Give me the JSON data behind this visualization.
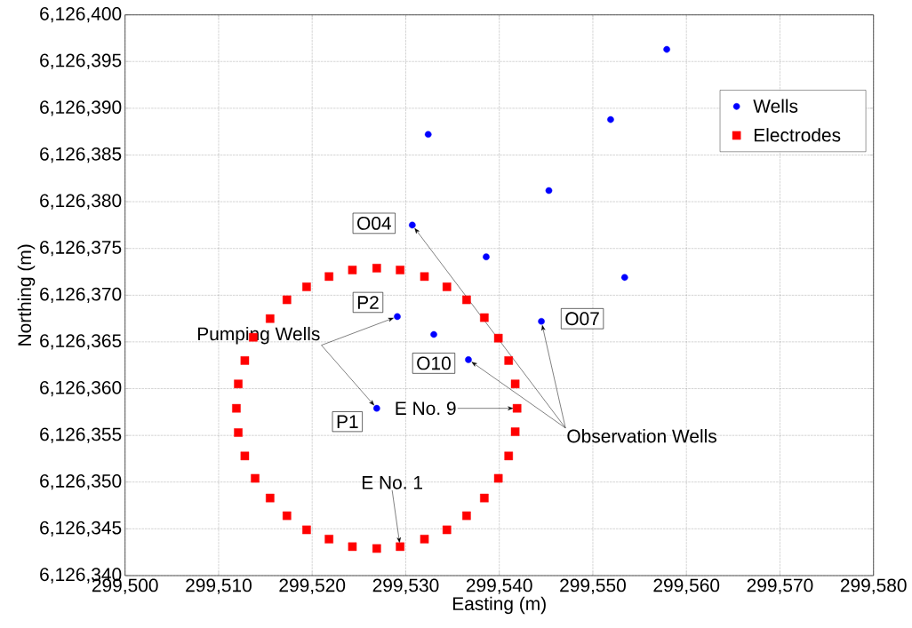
{
  "chart_data": {
    "type": "scatter",
    "xlabel": "Easting (m)",
    "ylabel": "Northing (m)",
    "xlim": [
      299500,
      299580
    ],
    "ylim": [
      6126340,
      6126400
    ],
    "xticks": [
      {
        "value": 299500,
        "label": "299,500"
      },
      {
        "value": 299510,
        "label": "299,510"
      },
      {
        "value": 299520,
        "label": "299,520"
      },
      {
        "value": 299530,
        "label": "299,530"
      },
      {
        "value": 299540,
        "label": "299,540"
      },
      {
        "value": 299550,
        "label": "299,550"
      },
      {
        "value": 299560,
        "label": "299,560"
      },
      {
        "value": 299570,
        "label": "299,570"
      },
      {
        "value": 299580,
        "label": "299,580"
      }
    ],
    "yticks": [
      {
        "value": 6126340,
        "label": "6,126,340"
      },
      {
        "value": 6126345,
        "label": "6,126,345"
      },
      {
        "value": 6126350,
        "label": "6,126,350"
      },
      {
        "value": 6126355,
        "label": "6,126,355"
      },
      {
        "value": 6126360,
        "label": "6,126,360"
      },
      {
        "value": 6126365,
        "label": "6,126,365"
      },
      {
        "value": 6126370,
        "label": "6,126,370"
      },
      {
        "value": 6126375,
        "label": "6,126,375"
      },
      {
        "value": 6126380,
        "label": "6,126,380"
      },
      {
        "value": 6126385,
        "label": "6,126,385"
      },
      {
        "value": 6126390,
        "label": "6,126,390"
      },
      {
        "value": 6126395,
        "label": "6,126,395"
      },
      {
        "value": 6126400,
        "label": "6,126,400"
      }
    ],
    "grid": true,
    "legend": "top right",
    "series": [
      {
        "name": "Wells",
        "color": "#0000ff",
        "marker": "circle",
        "x": [
          299557.9,
          299551.9,
          299532.4,
          299545.3,
          299530.7,
          299538.6,
          299553.4,
          299529.1,
          299544.5,
          299533.0,
          299536.7,
          299526.9
        ],
        "values": [
          6126396.3,
          6126388.8,
          6126387.2,
          6126381.2,
          6126377.5,
          6126374.1,
          6126371.9,
          6126367.7,
          6126367.2,
          6126365.8,
          6126363.1,
          6126357.9
        ]
      },
      {
        "name": "Electrodes",
        "color": "#ff0000",
        "marker": "square",
        "x": [
          299529.4,
          299532.0,
          299534.4,
          299536.5,
          299538.4,
          299539.9,
          299541.0,
          299541.7,
          299541.9,
          299541.7,
          299541.0,
          299539.9,
          299538.4,
          299536.5,
          299534.4,
          299532.0,
          299529.4,
          299526.9,
          299524.3,
          299521.8,
          299519.4,
          299517.3,
          299515.5,
          299513.7,
          299512.8,
          299512.1,
          299511.9,
          299512.1,
          299512.8,
          299513.9,
          299515.5,
          299517.3,
          299519.4,
          299521.8,
          299524.3,
          299526.9
        ],
        "values": [
          6126343.1,
          6126343.9,
          6126344.9,
          6126346.4,
          6126348.3,
          6126350.4,
          6126352.8,
          6126355.4,
          6126357.9,
          6126360.5,
          6126363.0,
          6126365.4,
          6126367.6,
          6126369.5,
          6126370.9,
          6126372.0,
          6126372.7,
          6126372.9,
          6126372.7,
          6126372.0,
          6126370.9,
          6126369.5,
          6126367.5,
          6126365.5,
          6126363.0,
          6126360.5,
          6126357.9,
          6126355.3,
          6126352.8,
          6126350.4,
          6126348.3,
          6126346.4,
          6126344.9,
          6126343.9,
          6126343.1,
          6126342.9
        ]
      }
    ],
    "annotations": [
      {
        "text": "P1",
        "x": 299526.9,
        "y": 6126357.9
      },
      {
        "text": "P2",
        "x": 299529.1,
        "y": 6126367.7
      },
      {
        "text": "O04",
        "x": 299530.7,
        "y": 6126377.5
      },
      {
        "text": "O07",
        "x": 299544.5,
        "y": 6126367.2
      },
      {
        "text": "O10",
        "x": 299536.7,
        "y": 6126363.1
      },
      {
        "text": "Pumping Wells",
        "x": 299526.9,
        "y": 6126357.9
      },
      {
        "text": "E No. 9",
        "x": 299541.9,
        "y": 6126357.9
      },
      {
        "text": "E No. 1",
        "x": 299529.4,
        "y": 6126343.1
      },
      {
        "text": "Observation Wells",
        "x": 299544.5,
        "y": 6126367.2
      }
    ]
  }
}
